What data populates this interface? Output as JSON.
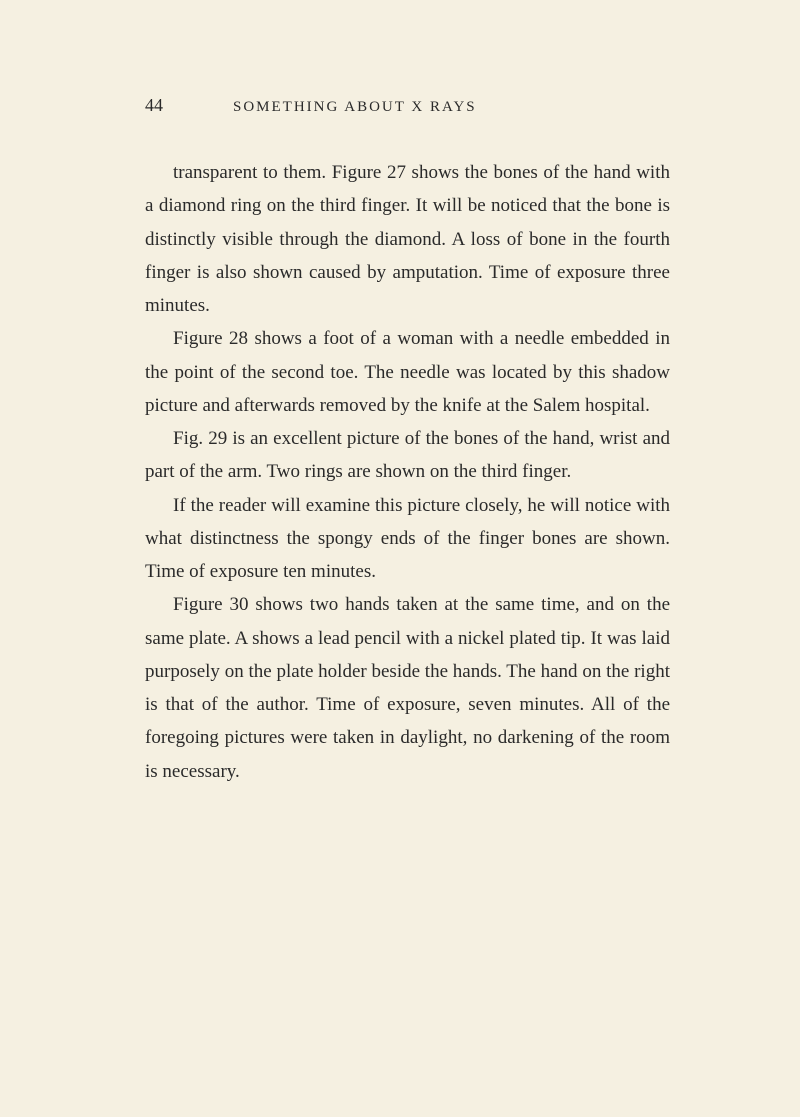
{
  "header": {
    "page_number": "44",
    "running_head": "SOMETHING ABOUT X RAYS"
  },
  "paragraphs": [
    "transparent to them. Figure 27 shows the bones of the hand with a diamond ring on the third finger. It will be noticed that the bone is distinctly visible through the diamond. A loss of bone in the fourth finger is also shown caused by amputation. Time of exposure three minutes.",
    "Figure 28 shows a foot of a woman with a needle embedded in the point of the second toe. The needle was located by this shadow picture and afterwards removed by the knife at the Salem hospital.",
    "Fig. 29 is an excellent picture of the bones of the hand, wrist and part of the arm. Two rings are shown on the third finger.",
    "If the reader will examine this picture closely, he will notice with what distinctness the spongy ends of the finger bones are shown. Time of exposure ten minutes.",
    "Figure 30 shows two hands taken at the same time, and on the same plate. A shows a lead pencil with a nickel plated tip. It was laid purposely on the plate holder beside the hands. The hand on the right is that of the author. Time of exposure, seven minutes. All of the foregoing pictures were taken in daylight, no darkening of the room is necessary."
  ],
  "style": {
    "background_color": "#f5f0e1",
    "text_color": "#2a2a2a",
    "body_font_size": 19,
    "line_height": 1.75,
    "header_font_size": 15,
    "page_number_font_size": 18
  }
}
